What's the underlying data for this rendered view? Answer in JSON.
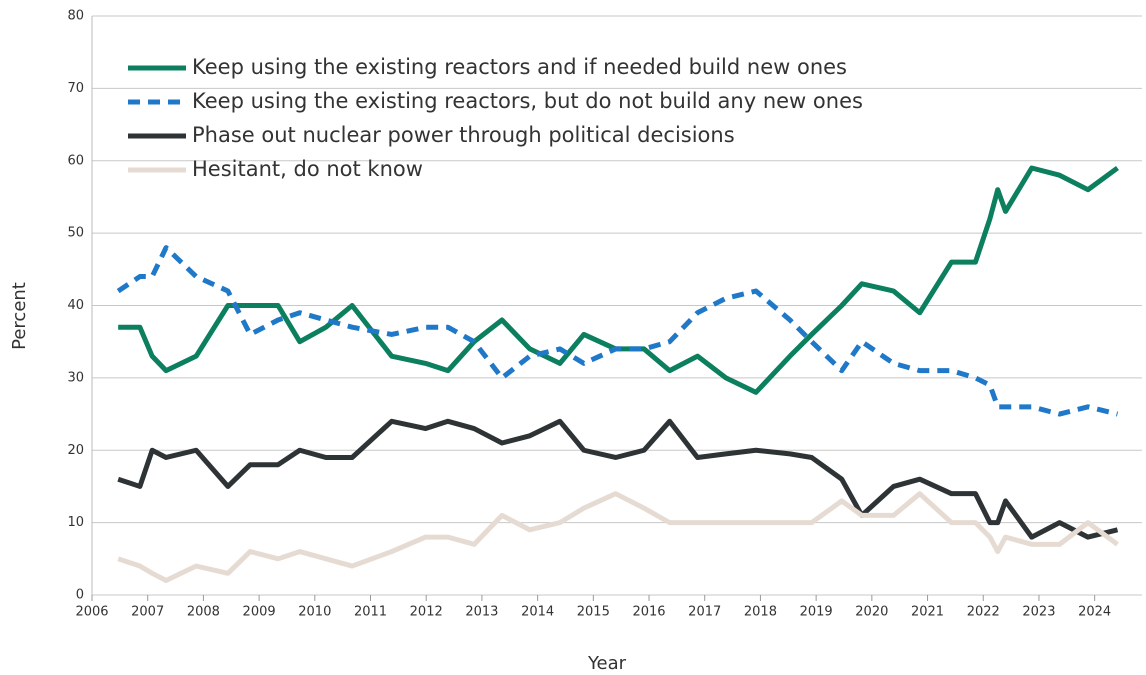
{
  "chart_data": {
    "type": "line",
    "xlabel": "Year",
    "ylabel": "Percent",
    "x": [
      2006.47,
      2006.86,
      2007.08,
      2007.33,
      2007.87,
      2008.44,
      2008.84,
      2009.34,
      2009.73,
      2010.2,
      2010.67,
      2011.38,
      2011.99,
      2012.39,
      2012.86,
      2013.36,
      2013.86,
      2014.4,
      2014.83,
      2015.4,
      2015.91,
      2016.37,
      2016.87,
      2017.38,
      2017.92,
      2018.53,
      2018.92,
      2019.46,
      2019.82,
      2020.39,
      2020.86,
      2021.43,
      2021.86,
      2022.12,
      2022.26,
      2022.4,
      2022.87,
      2023.37,
      2023.88,
      2024.41
    ],
    "series": [
      {
        "name": "Keep using the existing reactors and if needed build new ones",
        "color": "#0b7f5e",
        "dashed": false,
        "values": [
          37,
          37,
          33,
          31,
          33,
          40,
          40,
          40,
          35,
          37,
          40,
          33,
          32,
          31,
          35,
          38,
          34,
          32,
          36,
          34,
          34,
          31,
          33,
          30,
          28,
          33,
          36,
          40,
          43,
          42,
          39,
          46,
          46,
          52,
          56,
          53,
          59,
          58,
          56,
          59
        ]
      },
      {
        "name": "Keep using the existing reactors, but do not build any new ones",
        "color": "#1f78c8",
        "dashed": true,
        "values": [
          42,
          44,
          44,
          48,
          44,
          42,
          36,
          38,
          39,
          38,
          37,
          36,
          37,
          37,
          35,
          30,
          33,
          34,
          32,
          34,
          34,
          35,
          39,
          41,
          42,
          38,
          35,
          31,
          35,
          32,
          31,
          31,
          30,
          29,
          26,
          26,
          26,
          25,
          26,
          25
        ]
      },
      {
        "name": "Phase out nuclear power through political decisions",
        "color": "#2e3336",
        "dashed": false,
        "values": [
          16,
          15,
          20,
          19,
          20,
          15,
          18,
          18,
          20,
          19,
          19,
          24,
          23,
          24,
          23,
          21,
          22,
          24,
          20,
          19,
          20,
          24,
          19,
          19.5,
          20,
          19.5,
          19,
          16,
          11,
          15,
          16,
          14,
          14,
          10,
          10,
          13,
          8,
          10,
          8,
          9
        ]
      },
      {
        "name": "Hesitant, do not know",
        "color": "#e6dbd3",
        "dashed": false,
        "values": [
          5,
          4,
          3,
          2,
          4,
          3,
          6,
          5,
          6,
          5,
          4,
          6,
          8,
          8,
          7,
          11,
          9,
          10,
          12,
          14,
          12,
          10,
          10,
          10,
          10,
          10,
          10,
          13,
          11,
          11,
          14,
          10,
          10,
          8,
          6,
          8,
          7,
          7,
          10,
          7
        ]
      }
    ],
    "xlim": [
      2006,
      2024.85
    ],
    "ylim": [
      0,
      80
    ],
    "xticks": [
      2006,
      2007,
      2008,
      2009,
      2010,
      2011,
      2012,
      2013,
      2014,
      2015,
      2016,
      2017,
      2018,
      2019,
      2020,
      2021,
      2022,
      2023,
      2024
    ],
    "yticks": [
      0,
      10,
      20,
      30,
      40,
      50,
      60,
      70,
      80
    ],
    "grid": true,
    "legend": "upper left"
  }
}
